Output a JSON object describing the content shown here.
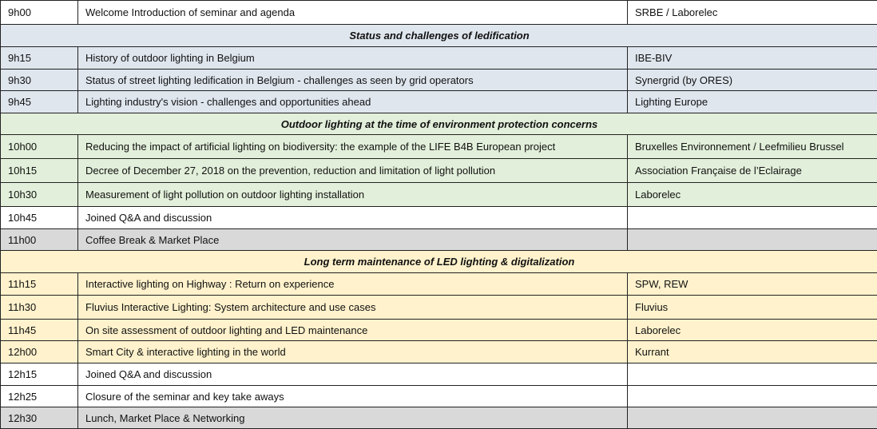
{
  "colors": {
    "white": "#ffffff",
    "blue": "#dfe6ee",
    "green": "#e2efda",
    "yellow": "#fff2cc",
    "grey": "#d9d9d9"
  },
  "rows": [
    {
      "type": "item",
      "color": "white",
      "time": "9h00",
      "title": "Welcome Introduction of seminar and agenda",
      "speaker": "SRBE / Laborelec"
    },
    {
      "type": "section",
      "color": "blue",
      "title": "Status and challenges of ledification"
    },
    {
      "type": "item",
      "color": "blue",
      "time": "9h15",
      "title": "History of outdoor lighting in Belgium",
      "speaker": "IBE-BIV"
    },
    {
      "type": "item",
      "color": "blue",
      "time": "9h30",
      "title": "Status of street lighting ledification in Belgium - challenges as seen by grid operators",
      "speaker": "Synergrid (by ORES)"
    },
    {
      "type": "item",
      "color": "blue",
      "time": "9h45",
      "title": "Lighting industry's vision - challenges and opportunities ahead",
      "speaker": "Lighting Europe"
    },
    {
      "type": "section",
      "color": "green",
      "title": "Outdoor lighting at the time of environment protection concerns"
    },
    {
      "type": "item",
      "color": "green",
      "time": "10h00",
      "title": "Reducing the impact of artificial lighting on biodiversity: the example of the LIFE B4B European project",
      "speaker": "Bruxelles Environnement / Leefmilieu Brussel"
    },
    {
      "type": "item",
      "color": "green",
      "time": "10h15",
      "title": "Decree of December 27, 2018 on the prevention, reduction and limitation of light pollution",
      "speaker": "Association Française de l’Eclairage"
    },
    {
      "type": "item",
      "color": "green",
      "time": "10h30",
      "title": "Measurement of light pollution on outdoor lighting installation",
      "speaker": "Laborelec"
    },
    {
      "type": "item",
      "color": "white",
      "time": "10h45",
      "title": "Joined Q&A and discussion",
      "speaker": ""
    },
    {
      "type": "item",
      "color": "grey",
      "time": "11h00",
      "title": "Coffee Break & Market Place",
      "speaker": ""
    },
    {
      "type": "section",
      "color": "yellow",
      "title": "Long term maintenance of LED lighting & digitalization"
    },
    {
      "type": "item",
      "color": "yellow",
      "time": "11h15",
      "title": "Interactive lighting on Highway : Return on experience",
      "speaker": "SPW, REW"
    },
    {
      "type": "item",
      "color": "yellow",
      "time": "11h30",
      "title": "Fluvius Interactive Lighting: System architecture and use cases",
      "speaker": "Fluvius"
    },
    {
      "type": "item",
      "color": "yellow",
      "time": "11h45",
      "title": "On site assessment of outdoor lighting and LED maintenance",
      "speaker": "Laborelec"
    },
    {
      "type": "item",
      "color": "yellow",
      "time": "12h00",
      "title": "Smart City & interactive lighting in the world",
      "speaker": "Kurrant"
    },
    {
      "type": "item",
      "color": "white",
      "time": "12h15",
      "title": "Joined Q&A and discussion",
      "speaker": ""
    },
    {
      "type": "item",
      "color": "white",
      "time": "12h25",
      "title": "Closure of the seminar and key take aways",
      "speaker": ""
    },
    {
      "type": "item",
      "color": "grey",
      "time": "12h30",
      "title": "Lunch, Market Place & Networking",
      "speaker": ""
    }
  ]
}
